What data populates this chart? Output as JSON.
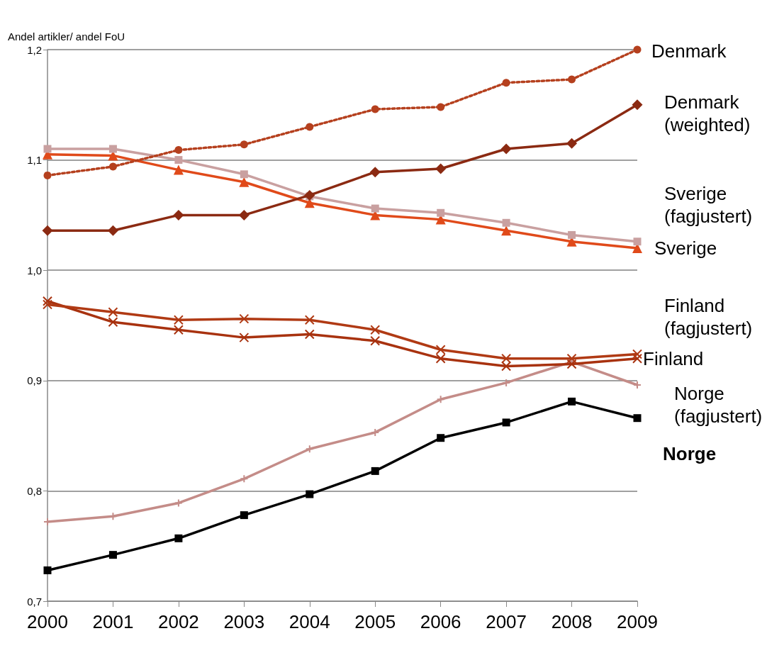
{
  "chart_data": {
    "type": "line",
    "ylabel": "Andel artikler/ andel FoU",
    "categories": [
      "2000",
      "2001",
      "2002",
      "2003",
      "2004",
      "2005",
      "2006",
      "2007",
      "2008",
      "2009"
    ],
    "ylim": [
      0.7,
      1.2
    ],
    "yticks": [
      {
        "value": 0.7,
        "label": "0,7"
      },
      {
        "value": 0.8,
        "label": "0,8"
      },
      {
        "value": 0.9,
        "label": "0,9"
      },
      {
        "value": 1.0,
        "label": "1,0"
      },
      {
        "value": 1.1,
        "label": "1,1"
      },
      {
        "value": 1.2,
        "label": "1,2"
      }
    ],
    "grid": "y",
    "legend": false,
    "series": [
      {
        "name": "Denmark",
        "color": "#b5401e",
        "marker": "circle",
        "line_style": "dotted",
        "values": [
          1.086,
          1.094,
          1.109,
          1.114,
          1.13,
          1.146,
          1.148,
          1.17,
          1.173,
          1.2
        ]
      },
      {
        "name": "Denmark\n(weighted)",
        "color": "#8b2a12",
        "marker": "diamond",
        "line_style": "solid",
        "values": [
          1.036,
          1.036,
          1.05,
          1.05,
          1.068,
          1.089,
          1.092,
          1.11,
          1.115,
          1.15
        ]
      },
      {
        "name": "Sverige\n(fagjustert)",
        "color": "#c9a0a0",
        "marker": "square",
        "line_style": "solid",
        "values": [
          1.11,
          1.11,
          1.1,
          1.087,
          1.067,
          1.056,
          1.052,
          1.043,
          1.032,
          1.026
        ]
      },
      {
        "name": "Sverige",
        "color": "#e04a1a",
        "marker": "triangle",
        "line_style": "solid",
        "values": [
          1.105,
          1.104,
          1.091,
          1.08,
          1.061,
          1.05,
          1.046,
          1.036,
          1.026,
          1.02
        ]
      },
      {
        "name": "Finland\n(fagjustert)",
        "color": "#b03a14",
        "marker": "cross",
        "line_style": "solid",
        "values": [
          0.969,
          0.962,
          0.955,
          0.956,
          0.955,
          0.946,
          0.928,
          0.92,
          0.92,
          0.924
        ]
      },
      {
        "name": "Finland",
        "color": "#a8320f",
        "marker": "cross",
        "line_style": "solid",
        "values": [
          0.972,
          0.953,
          0.946,
          0.939,
          0.942,
          0.936,
          0.92,
          0.913,
          0.915,
          0.92
        ]
      },
      {
        "name": "Norge\n(fagjustert)",
        "color": "#c48c88",
        "marker": "plus",
        "line_style": "solid",
        "values": [
          0.772,
          0.777,
          0.789,
          0.811,
          0.838,
          0.853,
          0.883,
          0.898,
          0.917,
          0.896
        ]
      },
      {
        "name": "Norge",
        "color": "#000000",
        "marker": "square",
        "line_style": "solid",
        "values": [
          0.728,
          0.742,
          0.757,
          0.778,
          0.797,
          0.818,
          0.848,
          0.862,
          0.881,
          0.866
        ]
      }
    ]
  }
}
